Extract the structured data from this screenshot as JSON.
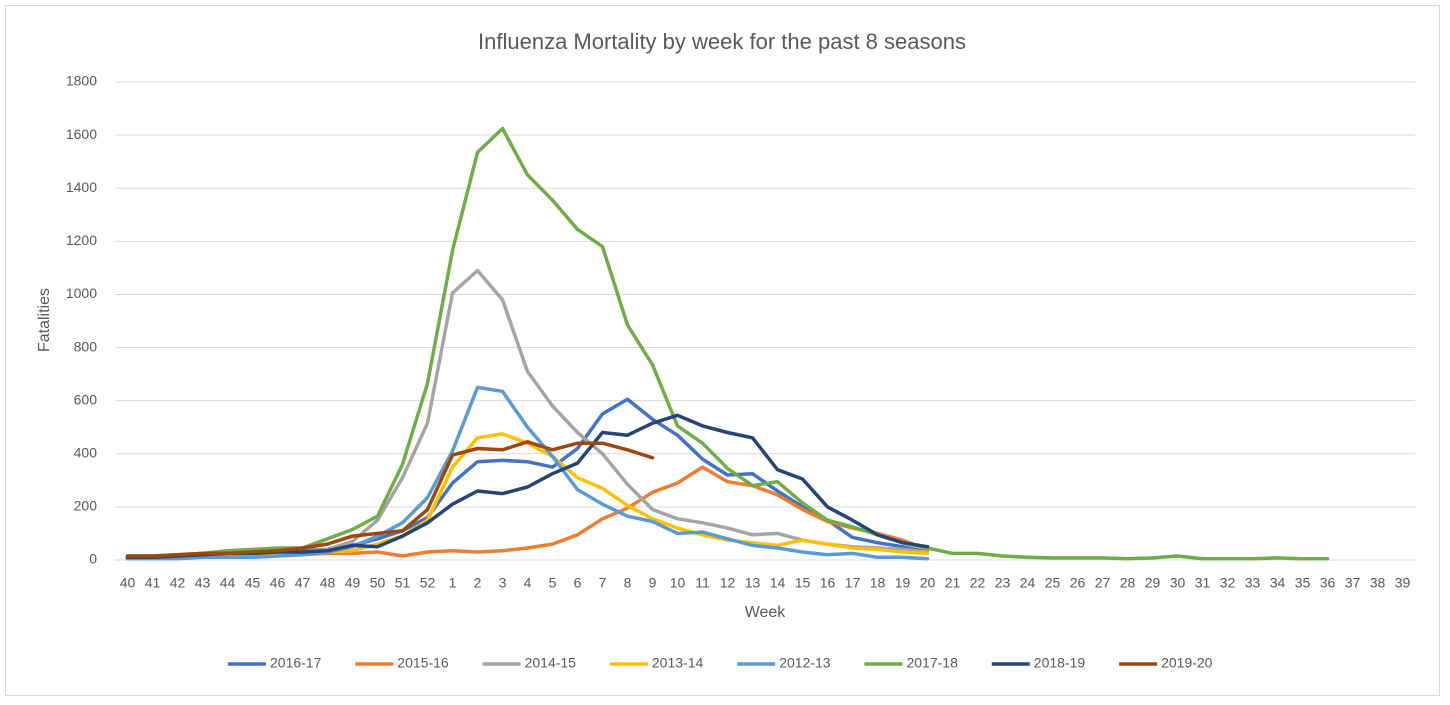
{
  "chart_data": {
    "type": "line",
    "title": "Influenza Mortality by week for the past 8 seasons",
    "x_label": "Week",
    "y_label": "Fatalities",
    "categories": [
      "40",
      "41",
      "42",
      "43",
      "44",
      "45",
      "46",
      "47",
      "48",
      "49",
      "50",
      "51",
      "52",
      "1",
      "2",
      "3",
      "4",
      "5",
      "6",
      "7",
      "8",
      "9",
      "10",
      "11",
      "12",
      "13",
      "14",
      "15",
      "16",
      "17",
      "18",
      "19",
      "20",
      "21",
      "22",
      "23",
      "24",
      "25",
      "26",
      "27",
      "28",
      "29",
      "30",
      "31",
      "32",
      "33",
      "34",
      "35",
      "36",
      "37",
      "38",
      "39"
    ],
    "ylim": [
      0,
      1800
    ],
    "yticks": [
      0,
      200,
      400,
      600,
      800,
      1000,
      1200,
      1400,
      1600,
      1800
    ],
    "grid": true,
    "legend": "bottom",
    "series": [
      {
        "name": "2016-17",
        "color": "#4472c4",
        "values": [
          10,
          10,
          15,
          20,
          25,
          25,
          30,
          35,
          40,
          55,
          80,
          110,
          160,
          290,
          370,
          375,
          370,
          350,
          420,
          550,
          605,
          530,
          470,
          380,
          320,
          325,
          260,
          200,
          150,
          85,
          65,
          50,
          30,
          null,
          null,
          null,
          null,
          null,
          null,
          null,
          null,
          null,
          null,
          null,
          null,
          null,
          null,
          null,
          null,
          null,
          null,
          null
        ]
      },
      {
        "name": "2015-16",
        "color": "#ed7d31",
        "values": [
          5,
          10,
          10,
          15,
          15,
          15,
          15,
          20,
          25,
          25,
          30,
          15,
          30,
          35,
          30,
          35,
          45,
          60,
          95,
          155,
          195,
          255,
          290,
          350,
          295,
          280,
          245,
          190,
          145,
          120,
          100,
          75,
          40,
          null,
          null,
          null,
          null,
          null,
          null,
          null,
          null,
          null,
          null,
          null,
          null,
          null,
          null,
          null,
          null,
          null,
          null,
          null
        ]
      },
      {
        "name": "2014-15",
        "color": "#a5a5a5",
        "values": [
          10,
          10,
          15,
          20,
          25,
          25,
          30,
          30,
          40,
          70,
          150,
          310,
          515,
          1005,
          1090,
          980,
          710,
          580,
          480,
          400,
          285,
          190,
          155,
          140,
          120,
          95,
          100,
          75,
          60,
          50,
          45,
          40,
          30,
          null,
          null,
          null,
          null,
          null,
          null,
          null,
          null,
          null,
          null,
          null,
          null,
          null,
          null,
          null,
          null,
          null,
          null,
          null
        ]
      },
      {
        "name": "2013-14",
        "color": "#ffc000",
        "values": [
          5,
          5,
          10,
          10,
          15,
          15,
          20,
          20,
          30,
          35,
          60,
          90,
          150,
          350,
          460,
          475,
          440,
          390,
          310,
          270,
          205,
          155,
          120,
          95,
          75,
          65,
          55,
          75,
          60,
          45,
          40,
          30,
          25,
          null,
          null,
          null,
          null,
          null,
          null,
          null,
          null,
          null,
          null,
          null,
          null,
          null,
          null,
          null,
          null,
          null,
          null,
          null
        ]
      },
      {
        "name": "2012-13",
        "color": "#5b9bd5",
        "values": [
          5,
          5,
          5,
          10,
          10,
          10,
          15,
          20,
          30,
          50,
          90,
          140,
          235,
          410,
          650,
          635,
          500,
          390,
          265,
          210,
          165,
          145,
          100,
          105,
          80,
          55,
          45,
          30,
          20,
          25,
          10,
          10,
          5,
          null,
          null,
          null,
          null,
          null,
          null,
          null,
          null,
          null,
          null,
          null,
          null,
          null,
          null,
          null,
          null,
          null,
          null,
          null
        ]
      },
      {
        "name": "2017-18",
        "color": "#70ad47",
        "values": [
          15,
          15,
          20,
          25,
          35,
          40,
          45,
          45,
          80,
          115,
          165,
          360,
          665,
          1165,
          1535,
          1625,
          1450,
          1355,
          1245,
          1180,
          885,
          735,
          505,
          440,
          345,
          280,
          295,
          215,
          150,
          125,
          95,
          65,
          45,
          25,
          25,
          15,
          10,
          8,
          8,
          8,
          5,
          8,
          15,
          5,
          5,
          5,
          8,
          5,
          5,
          null,
          null,
          null
        ]
      },
      {
        "name": "2018-19",
        "color": "#264478",
        "values": [
          10,
          10,
          15,
          20,
          25,
          25,
          30,
          30,
          35,
          55,
          50,
          90,
          140,
          210,
          260,
          250,
          275,
          325,
          365,
          480,
          470,
          515,
          545,
          505,
          480,
          460,
          340,
          305,
          200,
          150,
          95,
          65,
          50,
          null,
          null,
          null,
          null,
          null,
          null,
          null,
          null,
          null,
          null,
          null,
          null,
          null,
          null,
          null,
          null,
          null,
          null,
          null
        ]
      },
      {
        "name": "2019-20",
        "color": "#9e480e",
        "values": [
          15,
          15,
          20,
          25,
          25,
          30,
          35,
          45,
          60,
          90,
          100,
          110,
          190,
          395,
          420,
          415,
          445,
          415,
          440,
          440,
          415,
          385,
          null,
          null,
          null,
          null,
          null,
          null,
          null,
          null,
          null,
          null,
          null,
          null,
          null,
          null,
          null,
          null,
          null,
          null,
          null,
          null,
          null,
          null,
          null,
          null,
          null,
          null,
          null,
          null,
          null,
          null
        ]
      }
    ]
  }
}
